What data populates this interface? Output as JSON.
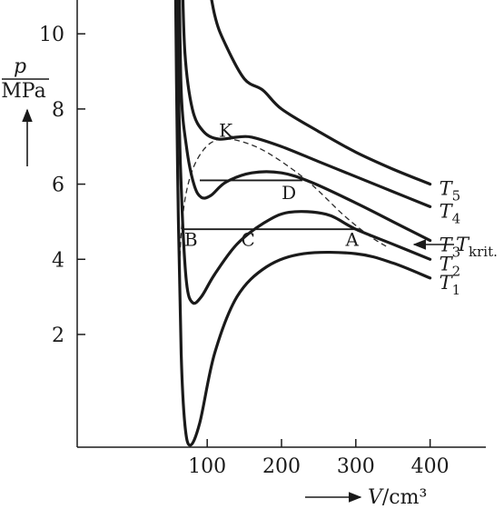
{
  "chart_data": {
    "type": "line",
    "xlabel": {
      "symbol": "V",
      "unit": "/cm³"
    },
    "ylabel": {
      "symbol": "p",
      "unit": "MPa"
    },
    "xlim": [
      -75,
      475
    ],
    "ylim": [
      -1.0,
      10.9
    ],
    "xticks": [
      100,
      200,
      300,
      400
    ],
    "yticks": [
      2,
      4,
      6,
      8,
      10
    ],
    "series": [
      {
        "name": "T1",
        "sub": "1",
        "points": [
          [
            57,
            12
          ],
          [
            60,
            6.5
          ],
          [
            65,
            1.5
          ],
          [
            70,
            -0.4
          ],
          [
            77,
            -0.95
          ],
          [
            90,
            -0.35
          ],
          [
            110,
            1.5
          ],
          [
            140,
            3.0
          ],
          [
            180,
            3.8
          ],
          [
            230,
            4.15
          ],
          [
            300,
            4.15
          ],
          [
            350,
            3.9
          ],
          [
            400,
            3.5
          ]
        ]
      },
      {
        "name": "T2",
        "sub": "2",
        "points": [
          [
            60,
            12
          ],
          [
            62,
            8
          ],
          [
            66,
            5.4
          ],
          [
            72,
            3.4
          ],
          [
            80,
            2.85
          ],
          [
            92,
            3.0
          ],
          [
            110,
            3.6
          ],
          [
            140,
            4.4
          ],
          [
            175,
            4.95
          ],
          [
            210,
            5.25
          ],
          [
            260,
            5.2
          ],
          [
            300,
            4.8
          ],
          [
            350,
            4.4
          ],
          [
            400,
            4.0
          ]
        ]
      },
      {
        "name": "T3",
        "sub": "3",
        "points": [
          [
            62,
            12
          ],
          [
            65,
            8.5
          ],
          [
            72,
            7.0
          ],
          [
            82,
            6.0
          ],
          [
            92,
            5.65
          ],
          [
            105,
            5.7
          ],
          [
            125,
            6.05
          ],
          [
            160,
            6.3
          ],
          [
            200,
            6.3
          ],
          [
            240,
            6.05
          ],
          [
            300,
            5.5
          ],
          [
            350,
            5.0
          ],
          [
            400,
            4.5
          ]
        ]
      },
      {
        "name": "T4",
        "sub": "4",
        "points": [
          [
            66,
            12
          ],
          [
            70,
            9.5
          ],
          [
            80,
            8.0
          ],
          [
            95,
            7.4
          ],
          [
            115,
            7.2
          ],
          [
            140,
            7.25
          ],
          [
            160,
            7.25
          ],
          [
            200,
            7.0
          ],
          [
            250,
            6.6
          ],
          [
            300,
            6.2
          ],
          [
            350,
            5.8
          ],
          [
            400,
            5.4
          ]
        ]
      },
      {
        "name": "T5",
        "sub": "5",
        "points": [
          [
            97,
            12
          ],
          [
            110,
            10.5
          ],
          [
            125,
            9.7
          ],
          [
            150,
            8.8
          ],
          [
            175,
            8.5
          ],
          [
            200,
            8.0
          ],
          [
            250,
            7.4
          ],
          [
            300,
            6.85
          ],
          [
            350,
            6.4
          ],
          [
            400,
            6.0
          ]
        ]
      }
    ],
    "coexistence_curve": [
      [
        62,
        3.35
      ],
      [
        65,
        4.7
      ],
      [
        72,
        5.8
      ],
      [
        85,
        6.6
      ],
      [
        105,
        7.1
      ],
      [
        130,
        7.2
      ],
      [
        165,
        7.0
      ],
      [
        200,
        6.6
      ],
      [
        240,
        6.0
      ],
      [
        285,
        5.15
      ],
      [
        320,
        4.6
      ],
      [
        345,
        4.3
      ]
    ],
    "tie_lines": [
      {
        "y": 4.8,
        "x": [
          68,
          304
        ]
      },
      {
        "y": 6.1,
        "x": [
          90,
          228
        ]
      }
    ],
    "point_labels": [
      {
        "text": "K",
        "x": 125,
        "y": 7.45
      },
      {
        "text": "D",
        "x": 210,
        "y": 5.8
      },
      {
        "text": "B",
        "x": 78,
        "y": 4.55
      },
      {
        "text": "C",
        "x": 155,
        "y": 4.55
      },
      {
        "text": "A",
        "x": 295,
        "y": 4.55
      }
    ],
    "critical_label": {
      "symbol": "T",
      "sub": "krit.",
      "y": 4.85
    }
  }
}
